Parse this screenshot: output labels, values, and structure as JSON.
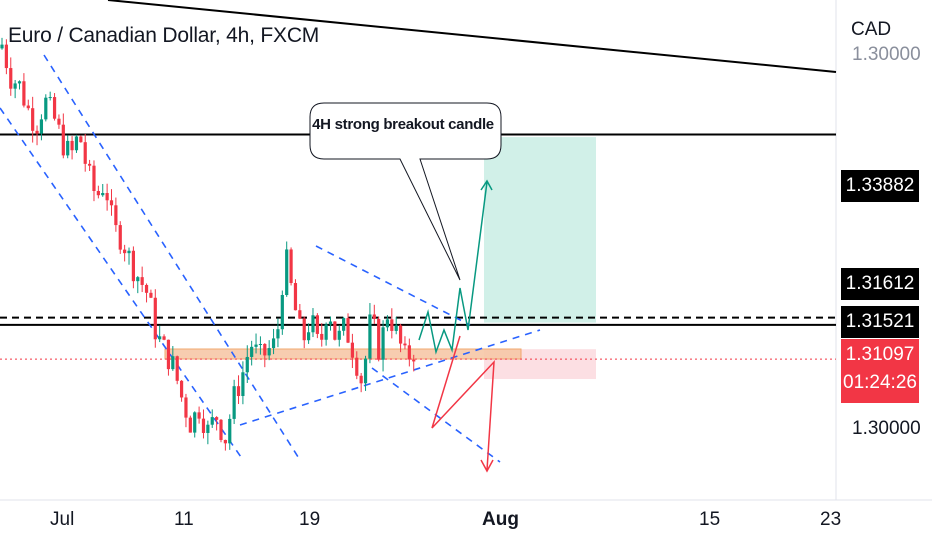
{
  "header": {
    "title": "Euro / Canadian Dollar, 4h, FXCM",
    "currency": "CAD"
  },
  "callout": {
    "text": "4H strong breakout candle"
  },
  "price_scale": {
    "ticks": [
      "1.30000",
      "1.30000"
    ],
    "levels": [
      {
        "value": "1.33882",
        "style": "black"
      },
      {
        "value": "1.31612",
        "style": "black"
      },
      {
        "value": "1.31521",
        "style": "black"
      }
    ],
    "current": {
      "value": "1.31097",
      "countdown": "01:24:26",
      "color": "#f23645"
    }
  },
  "time_scale": {
    "ticks": [
      "Jul",
      "11",
      "19",
      "Aug",
      "15",
      "23"
    ]
  },
  "colors": {
    "up": "#089981",
    "down": "#f23645",
    "drawing_blue": "#2962ff",
    "target_zone": "#d1f0e8",
    "stop_zone": "#fcdfe3",
    "support_zone": "#f7c8a8"
  },
  "chart_data": {
    "type": "candlestick",
    "symbol": "EURCAD",
    "timeframe": "4h",
    "source": "FXCM",
    "ylim": [
      1.2935,
      1.3555
    ],
    "horizontal_levels": [
      1.33882,
      1.31612,
      1.31521
    ],
    "current_price": 1.31097,
    "x_ticks": [
      "Jul",
      "11",
      "19",
      "Aug",
      "15",
      "23"
    ],
    "candles_close_path": [
      1.35,
      1.346,
      1.345,
      1.342,
      1.34,
      1.343,
      1.341,
      1.338,
      1.336,
      1.339,
      1.334,
      1.331,
      1.333,
      1.327,
      1.326,
      1.323,
      1.321,
      1.319,
      1.314,
      1.312,
      1.31,
      1.306,
      1.303,
      1.305,
      1.302,
      1.304,
      1.301,
      1.306,
      1.309,
      1.313,
      1.311,
      1.312,
      1.313,
      1.324,
      1.318,
      1.313,
      1.316,
      1.312,
      1.318,
      1.313,
      1.315,
      1.312,
      1.308,
      1.316,
      1.312,
      1.317,
      1.314,
      1.311,
      1.312
    ],
    "projection": {
      "breakout_target": 1.33882,
      "stop_zone": [
        1.3085,
        1.3122
      ],
      "target_zone": [
        1.3155,
        1.3385
      ]
    }
  }
}
